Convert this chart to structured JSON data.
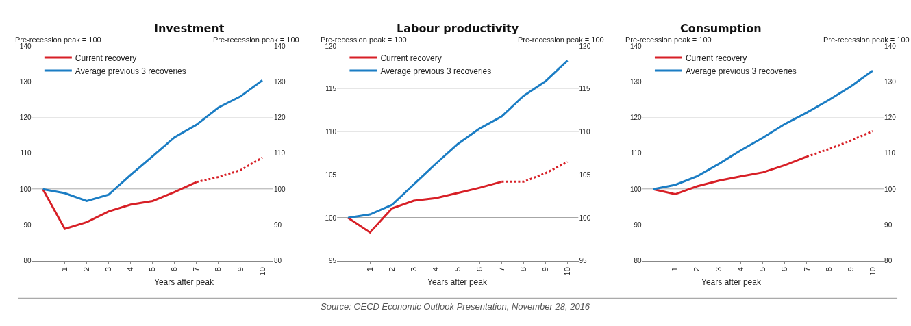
{
  "chart_data": [
    {
      "type": "line",
      "title": "Investment",
      "xlabel": "Years after peak",
      "ylabel": "Pre-recession peak = 100",
      "y2label": "Pre-recession peak = 100",
      "xlim": [
        -0.5,
        10.5
      ],
      "xticks": [
        1,
        2,
        3,
        4,
        5,
        6,
        7,
        8,
        9,
        10
      ],
      "ylim": [
        80,
        140
      ],
      "yticks": [
        80,
        90,
        100,
        110,
        120,
        130,
        140
      ],
      "y2lim": [
        80,
        140
      ],
      "y2ticks": [
        80,
        90,
        100,
        110,
        120,
        130,
        140
      ],
      "grid": "y",
      "legend": "top left",
      "marker": "none",
      "ref_lines": [
        {
          "axis": "y",
          "value": 100,
          "color": "#888888"
        }
      ],
      "series": [
        {
          "name": "Current recovery",
          "color": "#d71f26",
          "line_style": "solid",
          "x": [
            0,
            1,
            2,
            3,
            4,
            5,
            6,
            7
          ],
          "values": [
            100,
            88.9,
            90.8,
            93.8,
            95.7,
            96.7,
            99.2,
            102
          ]
        },
        {
          "color": "#d71f26",
          "line_style": "dotted",
          "x": [
            7,
            8,
            9,
            10
          ],
          "values": [
            102,
            103.4,
            105.3,
            108.8
          ]
        },
        {
          "name": "Average previous 3 recoveries",
          "color": "#1b7dc4",
          "line_style": "solid",
          "x": [
            0,
            1,
            2,
            3,
            4,
            5,
            6,
            7,
            8,
            9,
            10
          ],
          "values": [
            100,
            98.9,
            96.7,
            98.5,
            104,
            109.2,
            114.5,
            118,
            122.8,
            125.9,
            130.4
          ]
        }
      ]
    },
    {
      "type": "line",
      "title": "Labour productivity",
      "xlabel": "Years after peak",
      "ylabel": "Pre-recession peak = 100",
      "y2label": "Pre-recession peak = 100",
      "xlim": [
        -0.5,
        10.5
      ],
      "xticks": [
        1,
        2,
        3,
        4,
        5,
        6,
        7,
        8,
        9,
        10
      ],
      "ylim": [
        95,
        120
      ],
      "yticks": [
        95,
        100,
        105,
        110,
        115,
        120
      ],
      "y2lim": [
        95,
        120
      ],
      "y2ticks": [
        95,
        100,
        105,
        110,
        115,
        120
      ],
      "grid": "y",
      "legend": "top left",
      "marker": "none",
      "ref_lines": [
        {
          "axis": "y",
          "value": 100,
          "color": "#888888"
        }
      ],
      "series": [
        {
          "name": "Current recovery",
          "color": "#d71f26",
          "line_style": "solid",
          "x": [
            0,
            1,
            2,
            3,
            4,
            5,
            6,
            7
          ],
          "values": [
            100,
            98.3,
            101.1,
            102.0,
            102.3,
            102.9,
            103.5,
            104.2
          ]
        },
        {
          "color": "#d71f26",
          "line_style": "dotted",
          "x": [
            7,
            8,
            9,
            10
          ],
          "values": [
            104.2,
            104.2,
            105.2,
            106.5
          ]
        },
        {
          "name": "Average previous 3 recoveries",
          "color": "#1b7dc4",
          "line_style": "solid",
          "x": [
            0,
            1,
            2,
            3,
            4,
            5,
            6,
            7,
            8,
            9,
            10
          ],
          "values": [
            100,
            100.4,
            101.5,
            103.9,
            106.3,
            108.6,
            110.4,
            111.8,
            114.2,
            115.9,
            118.3
          ]
        }
      ]
    },
    {
      "type": "line",
      "title": "Consumption",
      "xlabel": "Years after peak",
      "ylabel": "Pre-recession peak = 100",
      "y2label": "Pre-recession peak = 100",
      "xlim": [
        -0.5,
        10.5
      ],
      "xticks": [
        1,
        2,
        3,
        4,
        5,
        6,
        7,
        8,
        9,
        10
      ],
      "ylim": [
        80,
        140
      ],
      "yticks": [
        80,
        90,
        100,
        110,
        120,
        130,
        140
      ],
      "y2lim": [
        80,
        140
      ],
      "y2ticks": [
        80,
        90,
        100,
        110,
        120,
        130,
        140
      ],
      "grid": "y",
      "legend": "top left",
      "marker": "none",
      "ref_lines": [
        {
          "axis": "y",
          "value": 100,
          "color": "#888888"
        }
      ],
      "annotations": [
        "Source: OECD Economic Outlook Presentation, November 28, 2016"
      ],
      "series": [
        {
          "name": "Current recovery",
          "color": "#d71f26",
          "line_style": "solid",
          "x": [
            0,
            1,
            2,
            3,
            4,
            5,
            6,
            7
          ],
          "values": [
            100,
            98.6,
            100.8,
            102.4,
            103.6,
            104.7,
            106.7,
            109.1
          ]
        },
        {
          "color": "#d71f26",
          "line_style": "dotted",
          "x": [
            7,
            8,
            9,
            10
          ],
          "values": [
            109.1,
            111.2,
            113.6,
            116.2
          ]
        },
        {
          "name": "Average previous 3 recoveries",
          "color": "#1b7dc4",
          "line_style": "solid",
          "x": [
            0,
            1,
            2,
            3,
            4,
            5,
            6,
            7,
            8,
            9,
            10
          ],
          "values": [
            100,
            101.2,
            103.6,
            107.1,
            110.9,
            114.4,
            118.2,
            121.4,
            124.9,
            128.7,
            133.1
          ]
        }
      ]
    }
  ]
}
